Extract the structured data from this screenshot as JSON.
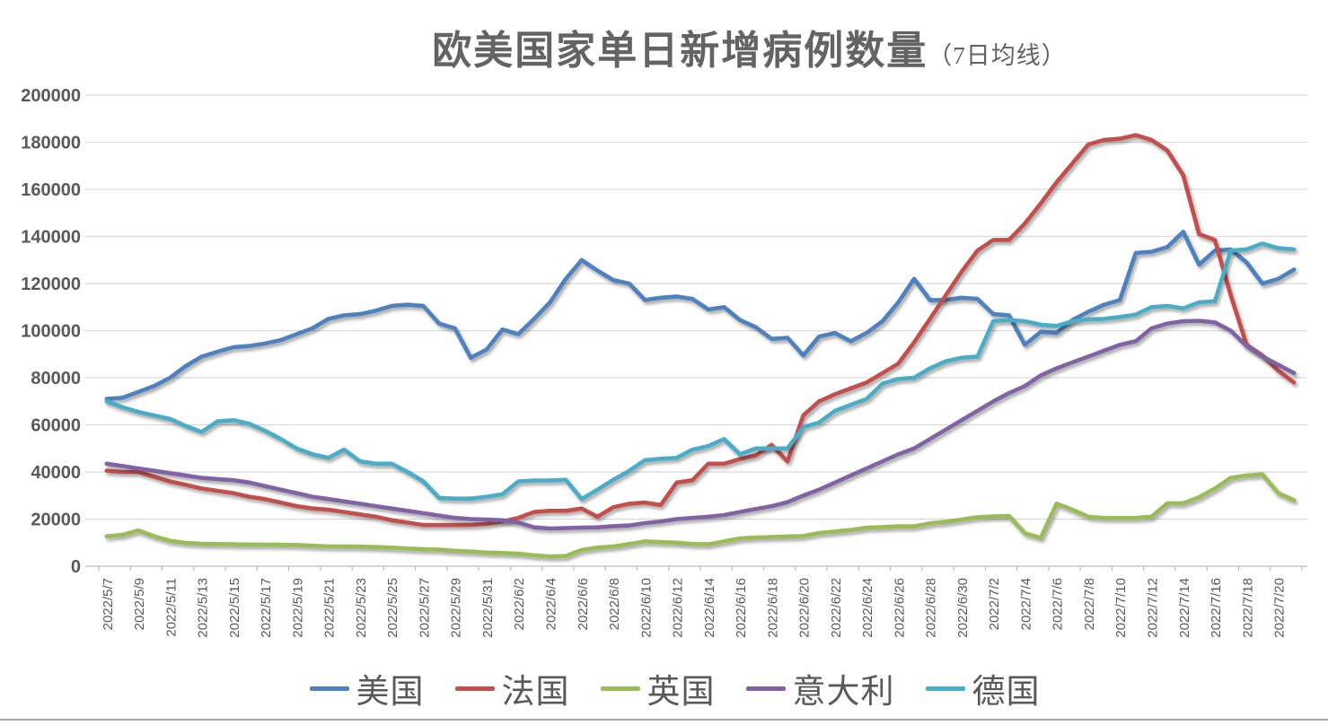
{
  "chart_data": {
    "type": "line",
    "title": "欧美国家单日新增病例数量",
    "title_suffix": "（7日均线）",
    "grid": true,
    "legend_position": "bottom",
    "ylim": [
      0,
      200000
    ],
    "y_tick_step": 20000,
    "y_tick_labels": [
      "0",
      "20000",
      "40000",
      "60000",
      "80000",
      "100000",
      "120000",
      "140000",
      "160000",
      "180000",
      "200000"
    ],
    "x_label_every": 2,
    "x": [
      "2022/5/7",
      "2022/5/8",
      "2022/5/9",
      "2022/5/10",
      "2022/5/11",
      "2022/5/12",
      "2022/5/13",
      "2022/5/14",
      "2022/5/15",
      "2022/5/16",
      "2022/5/17",
      "2022/5/18",
      "2022/5/19",
      "2022/5/20",
      "2022/5/21",
      "2022/5/22",
      "2022/5/23",
      "2022/5/24",
      "2022/5/25",
      "2022/5/26",
      "2022/5/27",
      "2022/5/28",
      "2022/5/29",
      "2022/5/30",
      "2022/5/31",
      "2022/6/1",
      "2022/6/2",
      "2022/6/3",
      "2022/6/4",
      "2022/6/5",
      "2022/6/6",
      "2022/6/7",
      "2022/6/8",
      "2022/6/9",
      "2022/6/10",
      "2022/6/11",
      "2022/6/12",
      "2022/6/13",
      "2022/6/14",
      "2022/6/15",
      "2022/6/16",
      "2022/6/17",
      "2022/6/18",
      "2022/6/19",
      "2022/6/20",
      "2022/6/21",
      "2022/6/22",
      "2022/6/23",
      "2022/6/24",
      "2022/6/25",
      "2022/6/26",
      "2022/6/27",
      "2022/6/28",
      "2022/6/29",
      "2022/6/30",
      "2022/7/1",
      "2022/7/2",
      "2022/7/3",
      "2022/7/4",
      "2022/7/5",
      "2022/7/6",
      "2022/7/7",
      "2022/7/8",
      "2022/7/9",
      "2022/7/10",
      "2022/7/11",
      "2022/7/12",
      "2022/7/13",
      "2022/7/14",
      "2022/7/15",
      "2022/7/16",
      "2022/7/17",
      "2022/7/18",
      "2022/7/19",
      "2022/7/20",
      "2022/7/21"
    ],
    "series": [
      {
        "name": "美国",
        "key": "usa",
        "color": "#4F81BD",
        "values": [
          71000,
          71500,
          74000,
          76500,
          80000,
          85000,
          89000,
          91000,
          93000,
          93500,
          94500,
          96000,
          98500,
          101000,
          105000,
          106500,
          107000,
          108500,
          110500,
          111000,
          110500,
          103000,
          101000,
          88500,
          92000,
          100500,
          98500,
          105000,
          112000,
          122000,
          130000,
          125500,
          121500,
          120000,
          113000,
          114000,
          114500,
          113500,
          109000,
          110000,
          104500,
          101500,
          96500,
          97000,
          89500,
          97500,
          99000,
          95500,
          99000,
          104000,
          112000,
          122000,
          113000,
          113000,
          114000,
          113500,
          107000,
          106500,
          94000,
          99500,
          99000,
          104500,
          108000,
          111000,
          113000,
          133000,
          133500,
          135500,
          142000,
          128000,
          134000,
          134500,
          129000,
          120000,
          122000,
          126000
        ]
      },
      {
        "name": "法国",
        "key": "france",
        "color": "#C0504D",
        "values": [
          40500,
          40000,
          40000,
          38000,
          36000,
          34500,
          33000,
          32000,
          31000,
          29500,
          28500,
          27000,
          25500,
          24500,
          24000,
          23000,
          22000,
          21000,
          19500,
          18500,
          17500,
          17500,
          17500,
          17500,
          18000,
          19000,
          20500,
          23000,
          23500,
          23500,
          24500,
          21000,
          25000,
          26500,
          27000,
          26000,
          35500,
          36500,
          43500,
          43500,
          45500,
          47000,
          51500,
          44500,
          64000,
          70000,
          73000,
          75500,
          78000,
          82000,
          86000,
          95000,
          105000,
          115000,
          125000,
          134000,
          138500,
          138500,
          145500,
          154000,
          163000,
          171000,
          179000,
          181000,
          181500,
          183000,
          181000,
          176500,
          166000,
          141000,
          138500,
          115000,
          94000,
          89500,
          83000,
          78000
        ]
      },
      {
        "name": "英国",
        "key": "uk",
        "color": "#9BBB59",
        "values": [
          12700,
          13300,
          15200,
          12700,
          10800,
          9900,
          9500,
          9400,
          9300,
          9200,
          9200,
          9100,
          9000,
          8700,
          8400,
          8400,
          8300,
          8100,
          7900,
          7500,
          7200,
          7000,
          6500,
          6200,
          5800,
          5600,
          5300,
          4600,
          4100,
          4300,
          6900,
          7900,
          8400,
          9400,
          10500,
          10200,
          10000,
          9400,
          9300,
          10500,
          11800,
          12200,
          12400,
          12600,
          12800,
          14100,
          14700,
          15400,
          16300,
          16600,
          16900,
          16900,
          18200,
          18800,
          19800,
          20800,
          21100,
          21300,
          14000,
          12000,
          26500,
          24000,
          21000,
          20500,
          20500,
          20500,
          21000,
          26700,
          26700,
          29300,
          33000,
          37500,
          38500,
          39000,
          31000,
          28000
        ]
      },
      {
        "name": "意大利",
        "key": "italy",
        "color": "#8064A2",
        "values": [
          43500,
          42500,
          41500,
          40500,
          39500,
          38500,
          37500,
          37000,
          36500,
          35500,
          34000,
          32500,
          31000,
          29500,
          28500,
          27500,
          26500,
          25500,
          24500,
          23500,
          22500,
          21500,
          20500,
          20000,
          19800,
          19500,
          18500,
          16500,
          16000,
          16200,
          16400,
          16500,
          17000,
          17300,
          18300,
          19000,
          20000,
          20500,
          21000,
          21700,
          23000,
          24300,
          25500,
          27200,
          30000,
          32500,
          35500,
          38500,
          41500,
          44500,
          47500,
          50000,
          54000,
          58000,
          62000,
          66000,
          70000,
          73500,
          76500,
          81000,
          84000,
          86500,
          89000,
          91500,
          94000,
          95500,
          101000,
          103000,
          104000,
          104200,
          103500,
          100000,
          93500,
          89000,
          85500,
          82000
        ]
      },
      {
        "name": "德国",
        "key": "germany",
        "color": "#4BACC6",
        "values": [
          70000,
          67500,
          65500,
          64000,
          62500,
          59500,
          57000,
          61500,
          62000,
          60500,
          57500,
          54000,
          50000,
          47500,
          46000,
          49500,
          44500,
          43500,
          43500,
          40000,
          36000,
          29000,
          28700,
          28700,
          29500,
          30500,
          36000,
          36400,
          36400,
          36700,
          28500,
          32500,
          36700,
          40500,
          45000,
          45600,
          46000,
          49500,
          51000,
          54000,
          47500,
          50000,
          50000,
          50000,
          59000,
          61000,
          66000,
          68500,
          71000,
          77500,
          79500,
          80000,
          84000,
          87000,
          88500,
          89000,
          104000,
          104500,
          104000,
          102500,
          102000,
          104000,
          104800,
          105000,
          105800,
          106800,
          110000,
          110500,
          109500,
          112000,
          112500,
          134000,
          134500,
          137000,
          135000,
          134500
        ]
      }
    ]
  }
}
